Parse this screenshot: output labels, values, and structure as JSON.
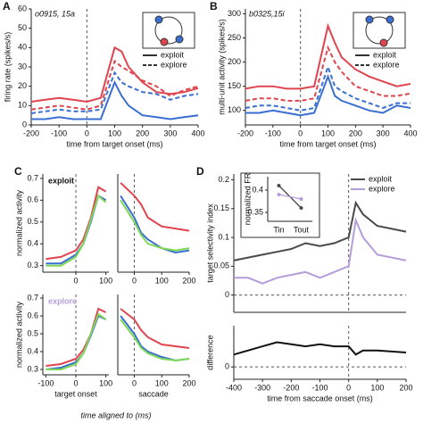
{
  "chart_data": [
    {
      "type": "line",
      "panel": "A",
      "annotation": "o0915, 15a",
      "ylabel": "firing rate (spikes/s)",
      "xlabel": "time from target onset (ms)",
      "x": [
        -200,
        -150,
        -100,
        -50,
        0,
        50,
        100,
        125,
        150,
        200,
        250,
        300,
        350,
        400
      ],
      "xlim": [
        -200,
        400
      ],
      "xticks": [
        -200,
        -100,
        0,
        100,
        200,
        300,
        400
      ],
      "ylim": [
        0,
        60
      ],
      "yticks": [
        0,
        10,
        20,
        30,
        40,
        50,
        60
      ],
      "vline": 0,
      "legend": [
        {
          "name": "exploit",
          "dashed": false
        },
        {
          "name": "explore",
          "dashed": true
        }
      ],
      "series": [
        {
          "color": "#e0454f",
          "dashed": false,
          "values": [
            12,
            13,
            14,
            13,
            12,
            14,
            40,
            38,
            30,
            22,
            17,
            16,
            17,
            19
          ]
        },
        {
          "color": "#3a6fd1",
          "dashed": false,
          "values": [
            3,
            3,
            4,
            3,
            3,
            3,
            22,
            15,
            10,
            5,
            4,
            3,
            4,
            5
          ]
        },
        {
          "color": "#e0454f",
          "dashed": true,
          "values": [
            8,
            9,
            10,
            9,
            8,
            10,
            33,
            30,
            28,
            23,
            20,
            15,
            18,
            20
          ]
        },
        {
          "color": "#3a6fd1",
          "dashed": true,
          "values": [
            6,
            7,
            8,
            7,
            7,
            8,
            27,
            22,
            20,
            17,
            16,
            13,
            15,
            16
          ]
        }
      ]
    },
    {
      "type": "line",
      "panel": "B",
      "annotation": "b0325,15i",
      "ylabel": "multi-unit activity (spikes/s)",
      "xlabel": "time from target onset (ms)",
      "x": [
        -200,
        -150,
        -100,
        -50,
        0,
        50,
        100,
        125,
        150,
        200,
        250,
        300,
        350,
        400
      ],
      "xlim": [
        -200,
        400
      ],
      "xticks": [
        -200,
        -100,
        0,
        100,
        200,
        300,
        400
      ],
      "ylim": [
        70,
        310
      ],
      "yticks": [
        100,
        150,
        200,
        250,
        300
      ],
      "vline": 0,
      "legend": [
        {
          "name": "exploit",
          "dashed": false
        },
        {
          "name": "explore",
          "dashed": true
        }
      ],
      "series": [
        {
          "color": "#e0454f",
          "dashed": false,
          "values": [
            145,
            150,
            150,
            145,
            145,
            150,
            275,
            240,
            210,
            185,
            170,
            160,
            150,
            155
          ]
        },
        {
          "color": "#3a6fd1",
          "dashed": false,
          "values": [
            95,
            95,
            100,
            95,
            90,
            95,
            170,
            130,
            120,
            110,
            100,
            95,
            110,
            105
          ]
        },
        {
          "color": "#e0454f",
          "dashed": true,
          "values": [
            120,
            125,
            125,
            120,
            120,
            125,
            230,
            200,
            180,
            150,
            140,
            130,
            130,
            135
          ]
        },
        {
          "color": "#3a6fd1",
          "dashed": true,
          "values": [
            105,
            110,
            110,
            105,
            100,
            105,
            190,
            150,
            140,
            125,
            115,
            105,
            115,
            115
          ]
        }
      ]
    },
    {
      "type": "line",
      "panel": "C",
      "label": "exploit",
      "label_color": "#111111",
      "ylabel": "normalized activity",
      "x": [
        -100,
        -50,
        0,
        25,
        50,
        75,
        100
      ],
      "xlim": [
        -110,
        110
      ],
      "xticks": [
        0,
        100
      ],
      "ylim": [
        0.27,
        0.72
      ],
      "yticks": [
        0.3,
        0.4,
        0.5,
        0.6,
        0.7
      ],
      "vline": 0,
      "series": [
        {
          "color": "#e0454f",
          "dashed": false,
          "values": [
            0.33,
            0.34,
            0.37,
            0.42,
            0.52,
            0.66,
            0.64
          ]
        },
        {
          "color": "#3a6fd1",
          "dashed": false,
          "values": [
            0.31,
            0.31,
            0.35,
            0.4,
            0.5,
            0.62,
            0.6
          ]
        },
        {
          "color": "#7ed957",
          "dashed": false,
          "values": [
            0.3,
            0.3,
            0.34,
            0.4,
            0.51,
            0.62,
            0.59
          ]
        }
      ]
    },
    {
      "type": "line",
      "x": [
        -50,
        0,
        25,
        50,
        100,
        150,
        200
      ],
      "xlim": [
        -60,
        200
      ],
      "xticks": [
        0,
        100,
        200
      ],
      "ylim": [
        0.27,
        0.72
      ],
      "vline": 0,
      "series": [
        {
          "color": "#e0454f",
          "dashed": false,
          "values": [
            0.68,
            0.62,
            0.58,
            0.52,
            0.48,
            0.47,
            0.46
          ]
        },
        {
          "color": "#3a6fd1",
          "dashed": false,
          "values": [
            0.62,
            0.52,
            0.45,
            0.42,
            0.38,
            0.36,
            0.37
          ]
        },
        {
          "color": "#7ed957",
          "dashed": false,
          "values": [
            0.6,
            0.5,
            0.44,
            0.4,
            0.38,
            0.37,
            0.38
          ]
        }
      ]
    },
    {
      "type": "line",
      "label": "explore",
      "label_color": "#b39ddb",
      "ylabel": "normalized activity",
      "xlabel": "target onset",
      "x": [
        -100,
        -50,
        0,
        25,
        50,
        75,
        100
      ],
      "xlim": [
        -110,
        110
      ],
      "xticks": [
        -100,
        0,
        100
      ],
      "ylim": [
        0.27,
        0.72
      ],
      "yticks": [
        0.3,
        0.4,
        0.5,
        0.6,
        0.7
      ],
      "vline": 0,
      "series": [
        {
          "color": "#e0454f",
          "dashed": false,
          "values": [
            0.32,
            0.33,
            0.36,
            0.41,
            0.5,
            0.64,
            0.62
          ]
        },
        {
          "color": "#3a6fd1",
          "dashed": false,
          "values": [
            0.3,
            0.31,
            0.34,
            0.39,
            0.49,
            0.6,
            0.58
          ]
        },
        {
          "color": "#7ed957",
          "dashed": false,
          "values": [
            0.3,
            0.3,
            0.33,
            0.39,
            0.5,
            0.61,
            0.58
          ]
        }
      ]
    },
    {
      "type": "line",
      "xlabel": "saccade",
      "x": [
        -50,
        0,
        25,
        50,
        100,
        150,
        200
      ],
      "xlim": [
        -60,
        200
      ],
      "xticks": [
        0,
        100,
        200
      ],
      "ylim": [
        0.27,
        0.72
      ],
      "vline": 0,
      "series": [
        {
          "color": "#e0454f",
          "dashed": false,
          "values": [
            0.64,
            0.58,
            0.52,
            0.48,
            0.44,
            0.43,
            0.42
          ]
        },
        {
          "color": "#3a6fd1",
          "dashed": false,
          "values": [
            0.6,
            0.5,
            0.43,
            0.4,
            0.37,
            0.35,
            0.36
          ]
        },
        {
          "color": "#7ed957",
          "dashed": false,
          "values": [
            0.58,
            0.48,
            0.42,
            0.39,
            0.36,
            0.35,
            0.36
          ]
        }
      ]
    },
    {
      "type": "line",
      "panel": "D",
      "ylabel": "target selectivity index",
      "x": [
        -400,
        -350,
        -300,
        -250,
        -200,
        -150,
        -100,
        -50,
        0,
        25,
        50,
        100,
        200
      ],
      "xlim": [
        -400,
        200
      ],
      "ylim": [
        -0.03,
        0.21
      ],
      "yticks": [
        0,
        0.05,
        0.1,
        0.15,
        0.2
      ],
      "vline": 0,
      "hline": 0,
      "legend": [
        {
          "name": "exploit",
          "color": "#4a4a4a"
        },
        {
          "name": "explore",
          "color": "#b39ddb"
        }
      ],
      "series": [
        {
          "color": "#4a4a4a",
          "dashed": false,
          "values": [
            0.06,
            0.065,
            0.07,
            0.075,
            0.08,
            0.09,
            0.085,
            0.09,
            0.1,
            0.16,
            0.14,
            0.12,
            0.11
          ]
        },
        {
          "color": "#b39ddb",
          "dashed": false,
          "values": [
            0.03,
            0.03,
            0.02,
            0.03,
            0.035,
            0.04,
            0.03,
            0.04,
            0.05,
            0.13,
            0.1,
            0.07,
            0.06
          ]
        }
      ]
    },
    {
      "type": "line",
      "ylabel": "normalized FR",
      "categories": [
        "Tin",
        "Tout"
      ],
      "ylim": [
        0.33,
        0.43
      ],
      "yticks": [
        0.35,
        0.4
      ],
      "series": [
        {
          "color": "#4a4a4a",
          "dashed": false,
          "values": [
            0.41,
            0.36
          ]
        },
        {
          "color": "#b39ddb",
          "dashed": false,
          "values": [
            0.39,
            0.38
          ]
        }
      ]
    },
    {
      "type": "line",
      "ylabel": "difference",
      "xlabel": "time from saccade onset (ms)",
      "x": [
        -400,
        -350,
        -300,
        -250,
        -200,
        -150,
        -100,
        -50,
        0,
        25,
        50,
        100,
        200
      ],
      "xlim": [
        -400,
        200
      ],
      "xticks": [
        -400,
        -300,
        -200,
        -100,
        0,
        100,
        200
      ],
      "ylim": [
        -0.03,
        0.1
      ],
      "yticks": [
        0
      ],
      "vline": 0,
      "hline": 0,
      "series": [
        {
          "color": "#111111",
          "dashed": false,
          "values": [
            0.03,
            0.04,
            0.05,
            0.06,
            0.055,
            0.05,
            0.055,
            0.05,
            0.05,
            0.03,
            0.04,
            0.04,
            0.035
          ]
        }
      ]
    }
  ],
  "shared_xlabel": "time  aligned to (ms)"
}
